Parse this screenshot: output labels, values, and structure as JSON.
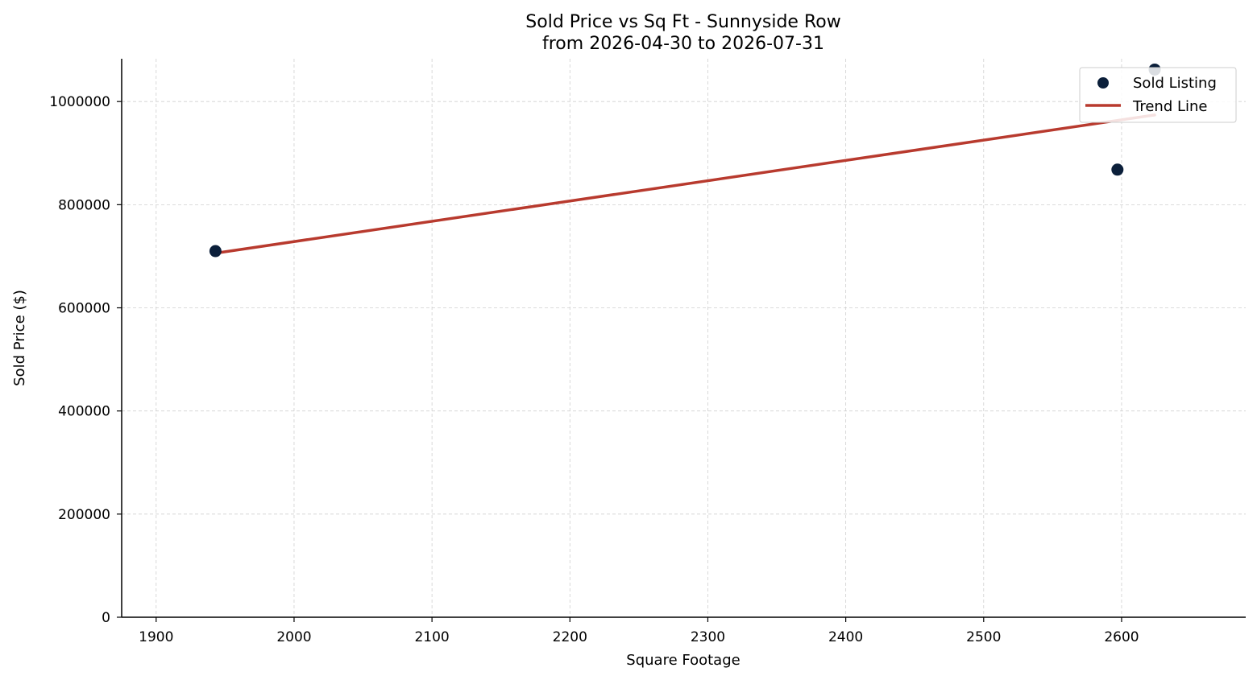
{
  "chart_data": {
    "type": "scatter",
    "title": "Sold Price vs Sq Ft - Sunnyside Row",
    "subtitle": "from 2026-04-30 to 2026-07-31",
    "xlabel": "Square Footage",
    "ylabel": "Sold Price ($)",
    "xlim": [
      1875,
      2690
    ],
    "ylim": [
      0,
      1083000
    ],
    "x_ticks": [
      1900,
      2000,
      2100,
      2200,
      2300,
      2400,
      2500,
      2600
    ],
    "y_ticks": [
      0,
      200000,
      400000,
      600000,
      800000,
      1000000
    ],
    "x_tick_labels": [
      "1900",
      "2000",
      "2100",
      "2200",
      "2300",
      "2400",
      "2500",
      "2600"
    ],
    "y_tick_labels": [
      "0",
      "200000",
      "400000",
      "600000",
      "800000",
      "1000000"
    ],
    "grid": true,
    "legend_position": "top-right",
    "series": [
      {
        "name": "Sold Listing",
        "kind": "scatter",
        "color": "#0b1f3a",
        "points": [
          {
            "x": 1943,
            "y": 710000
          },
          {
            "x": 2597,
            "y": 868000
          },
          {
            "x": 2624,
            "y": 1062000
          }
        ]
      },
      {
        "name": "Trend Line",
        "kind": "line",
        "color": "#b83a2e",
        "points": [
          {
            "x": 1943,
            "y": 706000
          },
          {
            "x": 2624,
            "y": 974000
          }
        ]
      }
    ]
  }
}
